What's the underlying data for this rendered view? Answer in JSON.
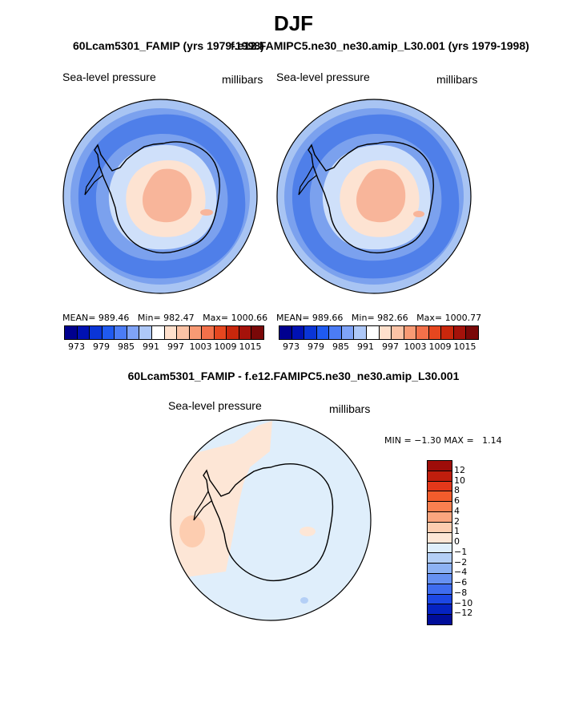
{
  "title": "DJF",
  "panel_left": {
    "case_title": "60Lcam5301_FAMIP (yrs 1979-1998)",
    "variable": "Sea-level pressure",
    "units": "millibars",
    "stats": {
      "mean_label": "MEAN=",
      "mean": "989.46",
      "min_label": "Min=",
      "min": "982.47",
      "max_label": "Max=",
      "max": "1000.66"
    }
  },
  "panel_right": {
    "case_title": "f.e12.FAMIPC5.ne30_ne30.amip_L30.001 (yrs 1979-1998)",
    "variable": "Sea-level pressure",
    "units": "millibars",
    "stats": {
      "mean_label": "MEAN=",
      "mean": "989.66",
      "min_label": "Min=",
      "min": "982.66",
      "max_label": "Max=",
      "max": "1000.77"
    }
  },
  "colorbar_abs": {
    "colors": [
      "#00008f",
      "#0011b3",
      "#0a35d6",
      "#1f5af0",
      "#4b7cf5",
      "#7fa3f7",
      "#aec8f8",
      "#ffffff",
      "#ffe0cc",
      "#fcc3a6",
      "#f89a74",
      "#f2704a",
      "#e6471f",
      "#c9270c",
      "#a5120a",
      "#7a0808"
    ],
    "tick_labels": [
      "973",
      "979",
      "985",
      "991",
      "997",
      "1003",
      "1009",
      "1015"
    ]
  },
  "diff_panel": {
    "title": "60Lcam5301_FAMIP - f.e12.FAMIPC5.ne30_ne30.amip_L30.001",
    "variable": "Sea-level pressure",
    "units": "millibars",
    "min_label": "MIN =",
    "min": "−1.30",
    "max_label": "MAX =",
    "max": "1.14"
  },
  "colorbar_diff": {
    "colors_top_to_bottom": [
      "#9e0d09",
      "#c01e0d",
      "#e3381a",
      "#f25c2c",
      "#f98050",
      "#fba67f",
      "#fdcdb0",
      "#fde6d6",
      "#dfeefb",
      "#b4cff6",
      "#8db2f4",
      "#6691f2",
      "#3e6cef",
      "#1c47e4",
      "#0523c2",
      "#000d9a"
    ],
    "tick_labels": [
      "12",
      "10",
      "8",
      "6",
      "4",
      "2",
      "1",
      "0",
      "−1",
      "−2",
      "−4",
      "−6",
      "−8",
      "−10",
      "−12"
    ]
  },
  "colors": {
    "ocean_deep_blue": "#4f7fe9",
    "ocean_mid_blue": "#7ba1ee",
    "ocean_light_blue": "#a8c4f3",
    "pale_blue": "#cfe0fa",
    "ice_white": "#f4f8fe",
    "peach": "#fde3d2",
    "salmon": "#f8b59a",
    "coastline": "#000000"
  }
}
